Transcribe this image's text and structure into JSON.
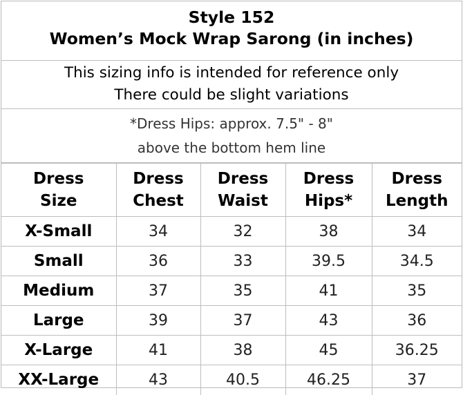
{
  "title": {
    "line1": "Style 152",
    "line2": "Women’s Mock Wrap Sarong (in inches)"
  },
  "note": {
    "line1": "This sizing info is intended for reference only",
    "line2": "There could be slight variations"
  },
  "hips_note": {
    "line1": "*Dress Hips: approx. 7.5\" - 8\"",
    "line2": "above the bottom hem line"
  },
  "table": {
    "headers": [
      {
        "line1": "Dress",
        "line2": "Size"
      },
      {
        "line1": "Dress",
        "line2": "Chest"
      },
      {
        "line1": "Dress",
        "line2": "Waist"
      },
      {
        "line1": "Dress",
        "line2": "Hips*"
      },
      {
        "line1": "Dress",
        "line2": "Length"
      }
    ],
    "rows": [
      {
        "size": "X-Small",
        "chest": "34",
        "waist": "32",
        "hips": "38",
        "length": "34"
      },
      {
        "size": "Small",
        "chest": "36",
        "waist": "33",
        "hips": "39.5",
        "length": "34.5"
      },
      {
        "size": "Medium",
        "chest": "37",
        "waist": "35",
        "hips": "41",
        "length": "35"
      },
      {
        "size": "Large",
        "chest": "39",
        "waist": "37",
        "hips": "43",
        "length": "36"
      },
      {
        "size": "X-Large",
        "chest": "41",
        "waist": "38",
        "hips": "45",
        "length": "36.25"
      },
      {
        "size": "XX-Large",
        "chest": "43",
        "waist": "40.5",
        "hips": "46.25",
        "length": "37"
      }
    ]
  }
}
